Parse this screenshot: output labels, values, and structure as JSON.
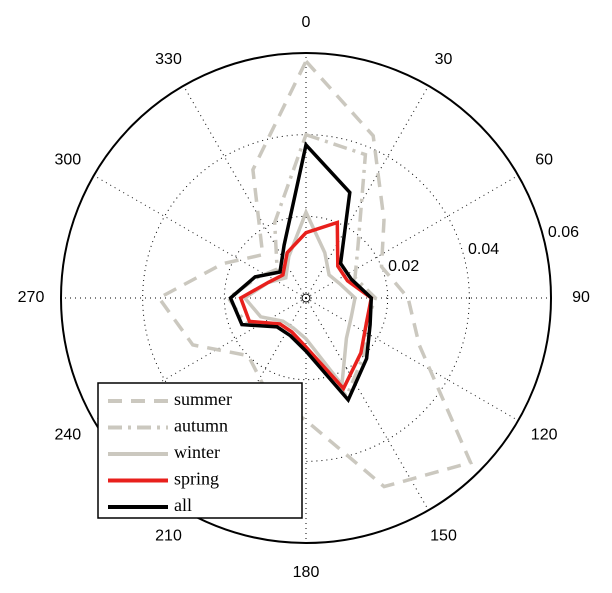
{
  "chart_data": {
    "type": "polar",
    "theta": [
      0,
      22.5,
      45,
      67.5,
      90,
      112.5,
      135,
      157.5,
      180,
      202.5,
      225,
      247.5,
      270,
      292.5,
      315,
      337.5
    ],
    "thetaticks": [
      0,
      30,
      60,
      90,
      120,
      150,
      180,
      210,
      240,
      270,
      300,
      330
    ],
    "rlim": [
      0,
      0.06
    ],
    "rticks": [
      0.02,
      0.04,
      0.06
    ],
    "grid": true,
    "legend": "lower left",
    "series": [
      {
        "name": "summer",
        "color": "#cbc8bf",
        "style": "dashed",
        "values": [
          0.058,
          0.043,
          0.027,
          0.02,
          0.025,
          0.03,
          0.057,
          0.05,
          0.03,
          0.025,
          0.02,
          0.03,
          0.036,
          0.022,
          0.015,
          0.034
        ]
      },
      {
        "name": "autumn",
        "color": "#cbc8bf",
        "style": "dashdot",
        "values": [
          0.04,
          0.038,
          0.018,
          0.013,
          0.017,
          0.016,
          0.02,
          0.026,
          0.013,
          0.01,
          0.01,
          0.016,
          0.019,
          0.013,
          0.01,
          0.02
        ]
      },
      {
        "name": "winter",
        "color": "#cbc8bf",
        "style": "solid",
        "values": [
          0.021,
          0.012,
          0.008,
          0.009,
          0.012,
          0.012,
          0.014,
          0.023,
          0.01,
          0.008,
          0.008,
          0.012,
          0.015,
          0.01,
          0.007,
          0.011
        ]
      },
      {
        "name": "spring",
        "color": "#e8201c",
        "style": "solid",
        "values": [
          0.016,
          0.02,
          0.011,
          0.011,
          0.016,
          0.016,
          0.019,
          0.024,
          0.012,
          0.009,
          0.009,
          0.015,
          0.016,
          0.01,
          0.008,
          0.012
        ]
      },
      {
        "name": "all",
        "color": "#000000",
        "style": "solid",
        "values": [
          0.0375,
          0.028,
          0.012,
          0.012,
          0.016,
          0.017,
          0.021,
          0.027,
          0.013,
          0.01,
          0.01,
          0.017,
          0.0185,
          0.0135,
          0.009,
          0.014
        ]
      }
    ]
  }
}
